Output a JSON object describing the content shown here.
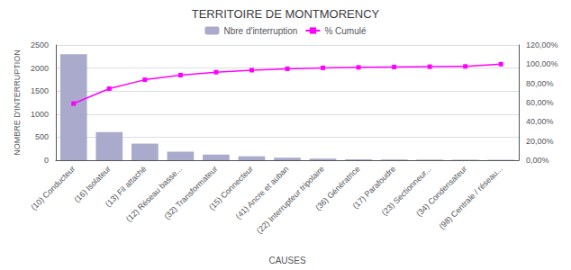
{
  "chart_data": {
    "type": "bar",
    "title": "TERRITOIRE DE MONTMORENCY",
    "xlabel": "CAUSES",
    "ylabel": "NOMBRE D'INTERRUPTION",
    "categories": [
      "(10) Conducteur",
      "(16) Isolateur",
      "(13) Fil attaché",
      "(12) Réseau basse...",
      "(32) Transformateur",
      "(15) Connecteur",
      "(41) Ancre et auban",
      "(22) Interrupteur tripolaire",
      "(36) Génératrice",
      "(17) Parafoudre",
      "(23) Sectionneur...",
      "(34) Condensateur",
      "(98) Centrale / réseau..."
    ],
    "series": [
      {
        "name": "Nbre d'interruption",
        "type": "bar",
        "color": "#aaaacc",
        "values": [
          2300,
          610,
          360,
          185,
          120,
          85,
          55,
          35,
          20,
          15,
          12,
          10,
          8
        ]
      },
      {
        "name": "% Cumulé",
        "type": "line",
        "color": "#ff00ff",
        "marker": "square",
        "axis": "y2",
        "values": [
          59.0,
          74.5,
          83.8,
          88.6,
          91.7,
          93.8,
          95.2,
          96.2,
          96.7,
          97.1,
          97.4,
          97.7,
          100.0
        ]
      }
    ],
    "ylim": [
      0,
      2500
    ],
    "yticks": [
      0,
      500,
      1000,
      1500,
      2000,
      2500
    ],
    "y2lim": [
      0,
      120
    ],
    "y2ticks": [
      {
        "value": 0,
        "label": "0,00%"
      },
      {
        "value": 20,
        "label": "20,00%"
      },
      {
        "value": 40,
        "label": "40,00%"
      },
      {
        "value": 60,
        "label": "60,00%"
      },
      {
        "value": 80,
        "label": "80,00%"
      },
      {
        "value": 100,
        "label": "100,00%"
      },
      {
        "value": 120,
        "label": "120,00%"
      }
    ],
    "grid": true,
    "legend": "top"
  }
}
